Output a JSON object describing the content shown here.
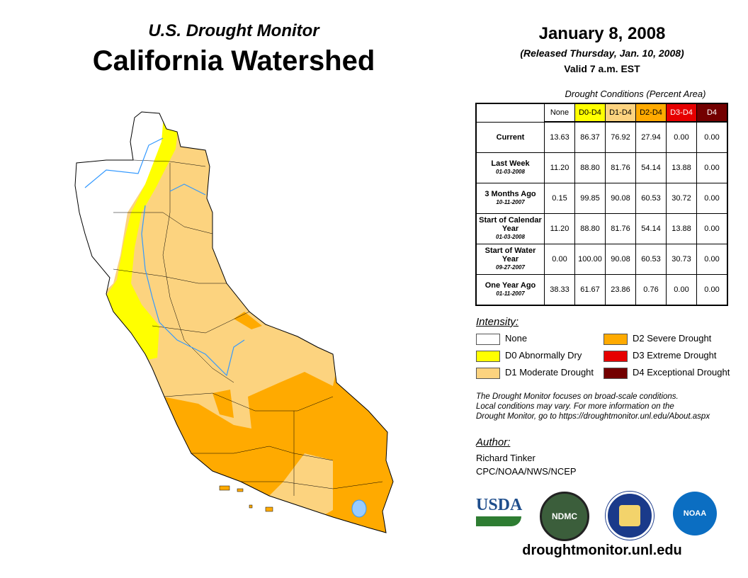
{
  "header": {
    "subtitle": "U.S. Drought Monitor",
    "title": "California Watershed",
    "date": "January 8, 2008",
    "released": "(Released Thursday, Jan. 10, 2008)",
    "valid": "Valid 7 a.m. EST"
  },
  "table": {
    "caption": "Drought Conditions (Percent Area)",
    "columns": [
      {
        "label": "None",
        "color": "#ffffff",
        "text": "#000"
      },
      {
        "label": "D0-D4",
        "color": "#ffff00",
        "text": "#000"
      },
      {
        "label": "D1-D4",
        "color": "#fcd37f",
        "text": "#000"
      },
      {
        "label": "D2-D4",
        "color": "#ffaa00",
        "text": "#000"
      },
      {
        "label": "D3-D4",
        "color": "#e60000",
        "text": "#fff"
      },
      {
        "label": "D4",
        "color": "#730000",
        "text": "#fff"
      }
    ],
    "rows": [
      {
        "label": "Current",
        "date": "",
        "values": [
          "13.63",
          "86.37",
          "76.92",
          "27.94",
          "0.00",
          "0.00"
        ]
      },
      {
        "label": "Last Week",
        "date": "01-03-2008",
        "values": [
          "11.20",
          "88.80",
          "81.76",
          "54.14",
          "13.88",
          "0.00"
        ]
      },
      {
        "label": "3 Months Ago",
        "date": "10-11-2007",
        "values": [
          "0.15",
          "99.85",
          "90.08",
          "60.53",
          "30.72",
          "0.00"
        ]
      },
      {
        "label": "Start of Calendar Year",
        "date": "01-03-2008",
        "values": [
          "11.20",
          "88.80",
          "81.76",
          "54.14",
          "13.88",
          "0.00"
        ]
      },
      {
        "label": "Start of Water Year",
        "date": "09-27-2007",
        "values": [
          "0.00",
          "100.00",
          "90.08",
          "60.53",
          "30.73",
          "0.00"
        ]
      },
      {
        "label": "One Year Ago",
        "date": "01-11-2007",
        "values": [
          "38.33",
          "61.67",
          "23.86",
          "0.76",
          "0.00",
          "0.00"
        ]
      }
    ]
  },
  "legend": {
    "title": "Intensity:",
    "items": [
      {
        "label": "None",
        "color": "#ffffff"
      },
      {
        "label": "D0 Abnormally Dry",
        "color": "#ffff00"
      },
      {
        "label": "D1 Moderate Drought",
        "color": "#fcd37f"
      },
      {
        "label": "D2 Severe Drought",
        "color": "#ffaa00"
      },
      {
        "label": "D3 Extreme Drought",
        "color": "#e60000"
      },
      {
        "label": "D4 Exceptional Drought",
        "color": "#730000"
      }
    ]
  },
  "note": [
    "The Drought Monitor focuses on broad-scale conditions.",
    "Local conditions may vary. For more information on the",
    "Drought Monitor, go to https://droughtmonitor.unl.edu/About.aspx"
  ],
  "author": {
    "title": "Author:",
    "name": "Richard Tinker",
    "org": "CPC/NOAA/NWS/NCEP"
  },
  "logos": {
    "usda": "USDA",
    "ndmc": "NDMC",
    "noaa": "NOAA"
  },
  "footer_url": "droughtmonitor.unl.edu"
}
